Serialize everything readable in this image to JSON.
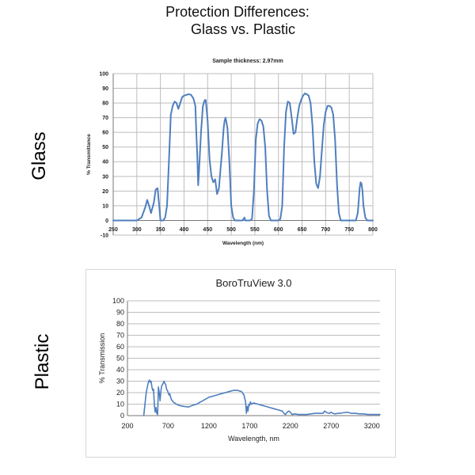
{
  "page": {
    "title_line1": "Protection Differences:",
    "title_line2": "Glass vs. Plastic",
    "glass_label": "Glass",
    "plastic_label": "Plastic"
  },
  "colors": {
    "series": "#4f7fbf",
    "grid": "#bdbdbd"
  },
  "chart_data": [
    {
      "type": "line",
      "title": "Sample thickness: 2.97mm",
      "xlabel": "Wavelength (nm)",
      "ylabel": "% Transmittance",
      "xlim": [
        250,
        800
      ],
      "ylim": [
        -10,
        100
      ],
      "x_ticks": [
        250,
        300,
        350,
        400,
        450,
        500,
        550,
        600,
        650,
        700,
        750,
        800
      ],
      "y_ticks": [
        -10,
        0,
        10,
        20,
        30,
        40,
        50,
        60,
        70,
        80,
        90,
        100
      ],
      "grid": true,
      "series": [
        {
          "x": [
            250,
            300,
            310,
            318,
            322,
            326,
            330,
            336,
            340,
            344,
            348,
            350,
            356,
            360,
            364,
            368,
            372,
            376,
            380,
            384,
            388,
            392,
            396,
            400,
            405,
            410,
            415,
            420,
            424,
            426,
            428,
            430,
            432,
            436,
            440,
            444,
            446,
            450,
            454,
            458,
            462,
            466,
            470,
            474,
            476,
            480,
            484,
            486,
            488,
            492,
            496,
            500,
            504,
            508,
            512,
            516,
            520,
            524,
            526,
            528,
            530,
            532,
            536,
            540,
            544,
            548,
            552,
            556,
            560,
            564,
            568,
            572,
            576,
            580,
            584,
            588,
            592,
            596,
            600,
            604,
            608,
            612,
            616,
            620,
            624,
            628,
            632,
            636,
            640,
            644,
            648,
            652,
            656,
            660,
            664,
            668,
            672,
            676,
            680,
            684,
            688,
            692,
            696,
            700,
            704,
            708,
            712,
            716,
            720,
            724,
            728,
            732,
            736,
            740,
            744,
            748,
            752,
            756,
            760,
            764,
            768,
            770,
            772,
            774,
            776,
            778,
            780,
            784,
            788,
            792,
            796,
            800
          ],
          "y": [
            0,
            0,
            2,
            9,
            14,
            10,
            5,
            12,
            21,
            22,
            8,
            0,
            0,
            2,
            10,
            40,
            72,
            78,
            81,
            80,
            76,
            80,
            84,
            85,
            85.5,
            86,
            85.5,
            83,
            78,
            60,
            45,
            24,
            35,
            60,
            78,
            82,
            82,
            68,
            42,
            30,
            26,
            28,
            18,
            22,
            30,
            45,
            63,
            68,
            70,
            63,
            40,
            10,
            2,
            0,
            0,
            0,
            0,
            0,
            1,
            2,
            0,
            0,
            0,
            0,
            1,
            20,
            55,
            66,
            69,
            68,
            64,
            50,
            20,
            3,
            0,
            0,
            0,
            0,
            0,
            1,
            10,
            50,
            74,
            81,
            80,
            70,
            59,
            60,
            70,
            78,
            82,
            85,
            86.5,
            86,
            85,
            80,
            65,
            40,
            25,
            22,
            30,
            48,
            65,
            74,
            78,
            78,
            77,
            72,
            55,
            25,
            5,
            0,
            0,
            0,
            0,
            0,
            0,
            0,
            0,
            0,
            5,
            13,
            22,
            26,
            25,
            20,
            10,
            2,
            0,
            0,
            0,
            0
          ]
        }
      ]
    },
    {
      "type": "line",
      "title": "BoroTruView 3.0",
      "xlabel": "Wavelength, nm",
      "ylabel": "% Transmission",
      "xlim": [
        200,
        3300
      ],
      "ylim": [
        0,
        100
      ],
      "x_ticks": [
        200,
        700,
        1200,
        1700,
        2200,
        2700,
        3200
      ],
      "y_ticks": [
        0,
        10,
        20,
        30,
        40,
        50,
        60,
        70,
        80,
        90,
        100
      ],
      "grid": true,
      "series": [
        {
          "x": [
            400,
            430,
            450,
            460,
            470,
            480,
            490,
            500,
            510,
            520,
            530,
            540,
            550,
            560,
            570,
            580,
            590,
            600,
            610,
            620,
            630,
            650,
            660,
            670,
            680,
            690,
            700,
            710,
            720,
            730,
            740,
            760,
            780,
            800,
            830,
            860,
            900,
            950,
            1000,
            1050,
            1100,
            1150,
            1200,
            1250,
            1300,
            1350,
            1400,
            1450,
            1500,
            1550,
            1600,
            1630,
            1650,
            1660,
            1670,
            1680,
            1690,
            1700,
            1710,
            1720,
            1750,
            1800,
            1850,
            1900,
            1950,
            2000,
            2050,
            2100,
            2120,
            2140,
            2160,
            2180,
            2200,
            2220,
            2250,
            2300,
            2350,
            2400,
            2450,
            2500,
            2550,
            2600,
            2620,
            2650,
            2680,
            2700,
            2720,
            2750,
            2780,
            2800,
            2850,
            2900,
            2950,
            3000,
            3050,
            3100,
            3150,
            3200,
            3250,
            3300
          ],
          "y": [
            0,
            20,
            27,
            30,
            31,
            29,
            30,
            25,
            22,
            23,
            10,
            3,
            7,
            2,
            1,
            25,
            20,
            13,
            21,
            26,
            27,
            30,
            28,
            27,
            23,
            22,
            20,
            18,
            19,
            16,
            14,
            12,
            11,
            10,
            9,
            8.5,
            8,
            7.5,
            9,
            10,
            12,
            14,
            16,
            17,
            18,
            19,
            20,
            21,
            22,
            22,
            21,
            18,
            12,
            2,
            8,
            4,
            10,
            9,
            12,
            10,
            11,
            10,
            9,
            8,
            7,
            6,
            5,
            4,
            2,
            1,
            3,
            4,
            3,
            1,
            1.5,
            1,
            1,
            1,
            1.5,
            2,
            2,
            2,
            4,
            2.5,
            2,
            3,
            2,
            1.5,
            2,
            2,
            2.5,
            3,
            2,
            2,
            1.5,
            1.5,
            1,
            1,
            1,
            1
          ]
        }
      ]
    }
  ]
}
